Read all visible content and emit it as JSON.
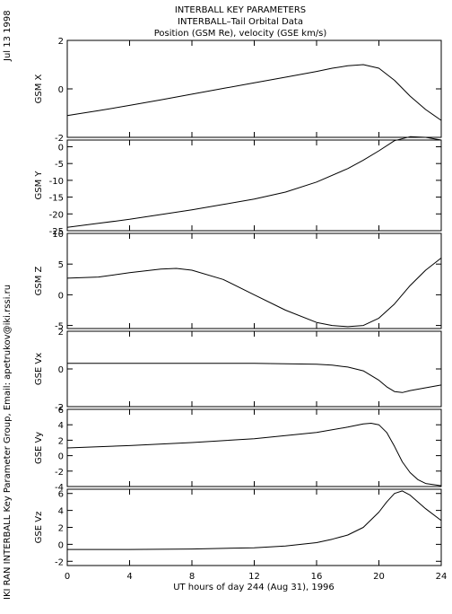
{
  "header": {
    "title": "INTERBALL KEY PARAMETERS",
    "subtitle": "INTERBALL–Tail Orbital Data",
    "subtitle2": "Position (GSM Re), velocity (GSE km/s)"
  },
  "side": {
    "date": "Jul 13 1998",
    "credit": "IKI RAN INTERBALL Key Parameter Group, Email: apetrukov@iki.rssi.ru"
  },
  "chart_data": {
    "type": "line",
    "grid": false,
    "xlabel": "UT hours of day 244 (Aug 31), 1996",
    "xlim": [
      0,
      24
    ],
    "xticks": [
      0,
      4,
      8,
      12,
      16,
      20,
      24
    ],
    "panels": [
      {
        "ylabel": "GSM X",
        "ylim": [
          -2,
          2
        ],
        "yticks": [
          -2,
          0,
          2
        ],
        "x": [
          0,
          2,
          4,
          6,
          8,
          10,
          12,
          14,
          16,
          17,
          18,
          19,
          20,
          21,
          22,
          23,
          24
        ],
        "y": [
          -1.1,
          -0.9,
          -0.68,
          -0.45,
          -0.22,
          0.02,
          0.25,
          0.48,
          0.72,
          0.85,
          0.95,
          1.0,
          0.85,
          0.35,
          -0.3,
          -0.85,
          -1.3
        ]
      },
      {
        "ylabel": "GSM Y",
        "ylim": [
          -25,
          2
        ],
        "yticks": [
          -25,
          -20,
          -15,
          -10,
          -5,
          0
        ],
        "x": [
          0,
          2,
          4,
          6,
          8,
          10,
          12,
          14,
          16,
          18,
          19,
          20,
          21,
          22,
          23,
          24
        ],
        "y": [
          -24,
          -22.8,
          -21.6,
          -20.2,
          -18.8,
          -17.2,
          -15.6,
          -13.5,
          -10.5,
          -6.5,
          -4.0,
          -1.2,
          1.8,
          3.0,
          2.8,
          2.0
        ]
      },
      {
        "ylabel": "GSM Z",
        "ylim": [
          -5.5,
          10
        ],
        "yticks": [
          -5,
          0,
          5,
          10
        ],
        "x": [
          0,
          2,
          4,
          6,
          7,
          8,
          10,
          12,
          14,
          16,
          17,
          18,
          19,
          20,
          21,
          22,
          23,
          24
        ],
        "y": [
          2.7,
          2.9,
          3.6,
          4.2,
          4.3,
          4.0,
          2.5,
          0.0,
          -2.5,
          -4.5,
          -5.0,
          -5.2,
          -5.0,
          -3.8,
          -1.5,
          1.5,
          4.0,
          6.0
        ]
      },
      {
        "ylabel": "GSE Vx",
        "ylim": [
          -2,
          2
        ],
        "yticks": [
          -2,
          0,
          2
        ],
        "x": [
          0,
          4,
          8,
          12,
          16,
          17,
          18,
          19,
          20,
          20.5,
          21,
          21.5,
          22,
          23,
          24
        ],
        "y": [
          0.3,
          0.3,
          0.3,
          0.3,
          0.25,
          0.2,
          0.1,
          -0.1,
          -0.6,
          -0.95,
          -1.2,
          -1.25,
          -1.15,
          -1.0,
          -0.85
        ]
      },
      {
        "ylabel": "GSE Vy",
        "ylim": [
          -4,
          6
        ],
        "yticks": [
          -4,
          -2,
          0,
          2,
          4,
          6
        ],
        "x": [
          0,
          4,
          8,
          12,
          16,
          18,
          19,
          19.5,
          20,
          20.5,
          21,
          21.5,
          22,
          22.5,
          23,
          24
        ],
        "y": [
          1.0,
          1.3,
          1.7,
          2.2,
          3.0,
          3.7,
          4.1,
          4.2,
          4.0,
          3.0,
          1.2,
          -0.8,
          -2.2,
          -3.1,
          -3.6,
          -3.9
        ]
      },
      {
        "ylabel": "GSE Vz",
        "ylim": [
          -2.5,
          6.5
        ],
        "yticks": [
          -2,
          0,
          2,
          4,
          6
        ],
        "x": [
          0,
          4,
          8,
          12,
          14,
          16,
          17,
          18,
          19,
          20,
          20.5,
          21,
          21.5,
          22,
          23,
          24
        ],
        "y": [
          -0.6,
          -0.6,
          -0.55,
          -0.4,
          -0.2,
          0.2,
          0.6,
          1.1,
          2.0,
          3.8,
          5.0,
          6.0,
          6.3,
          5.8,
          4.2,
          2.8
        ]
      }
    ]
  }
}
